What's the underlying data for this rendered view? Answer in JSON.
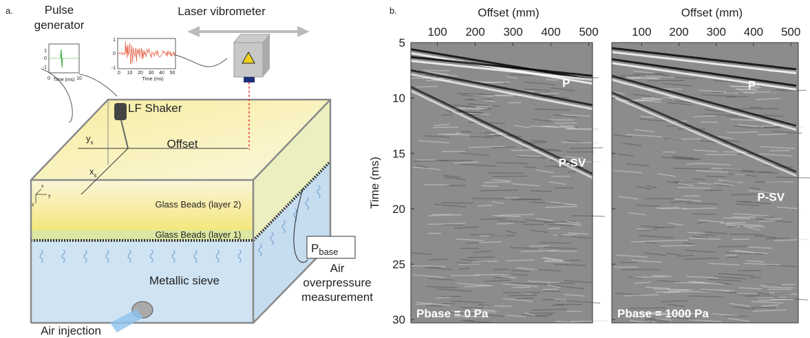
{
  "panel_a": {
    "label": "a.",
    "pulse_generator": {
      "lines": [
        "Pulse",
        "generator"
      ],
      "inset_yticks": [
        "1",
        "0",
        "-1"
      ],
      "inset_xticks": [
        "0",
        "10"
      ],
      "inset_xlabel": "Time (ms)"
    },
    "laser_vibrometer": {
      "title": "Laser vibrometer",
      "inset_yticks": [
        "1",
        "0",
        "-1"
      ],
      "inset_xticks": [
        "0",
        "10",
        "20",
        "30",
        "40",
        "50"
      ],
      "inset_xlabel": "Time (ms)"
    },
    "shaker": "LF Shaker",
    "ys": {
      "main": "y",
      "sub": "s"
    },
    "xs": {
      "main": "x",
      "sub": "s"
    },
    "offset": "Offset",
    "axes": [
      "x",
      "y",
      "z"
    ],
    "layer2": "Glass Beads (layer 2)",
    "layer1": "Glass Beads (layer 1)",
    "sieve": "Metallic sieve",
    "pbase": {
      "main": "P",
      "sub": "base"
    },
    "overpressure": [
      "Air",
      "overpressure",
      "measurement"
    ],
    "injection": "Air injection"
  },
  "panel_b": {
    "label": "b.",
    "ylabel": "Time (ms)",
    "yticks": [
      5,
      10,
      15,
      20,
      25,
      30
    ],
    "ylim": [
      5,
      30.3
    ],
    "xticks": [
      100,
      200,
      300,
      400,
      500
    ],
    "plots": [
      {
        "xlabel": "Offset (mm)",
        "xlim": [
          30,
          510
        ],
        "annotations": [
          "P",
          "P-SV"
        ],
        "caption": "Pbase = 0 Pa"
      },
      {
        "xlabel": "Offset (mm)",
        "xlim": [
          20,
          520
        ],
        "annotations": [
          "P",
          "P-SV"
        ],
        "caption": "Pbase = 1000 Pa"
      }
    ]
  }
}
